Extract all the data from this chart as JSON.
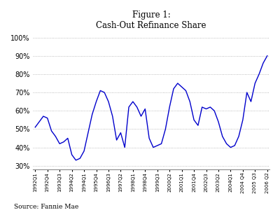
{
  "title": "Figure 1:\nCash-Out Refinance Share",
  "source": "Source: Fannie Mae",
  "line_color": "#0000CC",
  "grid_color": "#aaaaaa",
  "ylim": [
    0.28,
    1.02
  ],
  "yticks": [
    0.3,
    0.4,
    0.5,
    0.6,
    0.7,
    0.8,
    0.9,
    1.0
  ],
  "xtick_labels": [
    "1992Q1",
    "1992Q4",
    "1993Q3",
    "1994Q2",
    "1994Q1",
    "1995Q4",
    "1996Q3",
    "1997Q2",
    "1998Q1",
    "1998Q4",
    "1999Q3",
    "2000Q2",
    "2001Q1",
    "2001Q4",
    "2002Q3",
    "2003Q2",
    "2004Q1",
    "2004 Q4",
    "2005 Q3",
    "2006 Q2"
  ],
  "x_vals": [
    0,
    1,
    2,
    3,
    4,
    5,
    6,
    7,
    8,
    9,
    10,
    11,
    12,
    13,
    14,
    15,
    16,
    17,
    18,
    19,
    20,
    21,
    22,
    23,
    24,
    25,
    26,
    27,
    28,
    29,
    30,
    31,
    32,
    33,
    34,
    35,
    36,
    37,
    38,
    39,
    40,
    41,
    42,
    43,
    44,
    45,
    46,
    47,
    48,
    49,
    50,
    51,
    52,
    53,
    54,
    55,
    56,
    57
  ],
  "y_vals": [
    0.51,
    0.54,
    0.57,
    0.56,
    0.49,
    0.46,
    0.42,
    0.43,
    0.45,
    0.36,
    0.33,
    0.34,
    0.38,
    0.48,
    0.58,
    0.65,
    0.71,
    0.7,
    0.65,
    0.57,
    0.44,
    0.48,
    0.4,
    0.62,
    0.65,
    0.62,
    0.57,
    0.61,
    0.45,
    0.4,
    0.41,
    0.42,
    0.5,
    0.62,
    0.72,
    0.75,
    0.73,
    0.71,
    0.65,
    0.55,
    0.52,
    0.62,
    0.61,
    0.62,
    0.6,
    0.54,
    0.46,
    0.42,
    0.4,
    0.41,
    0.46,
    0.55,
    0.7,
    0.65,
    0.75,
    0.8,
    0.86,
    0.9
  ],
  "xtick_positions": [
    0,
    3,
    6,
    9,
    12,
    15,
    18,
    21,
    24,
    27,
    30,
    33,
    36,
    39,
    42,
    45,
    48,
    51,
    54,
    57
  ]
}
